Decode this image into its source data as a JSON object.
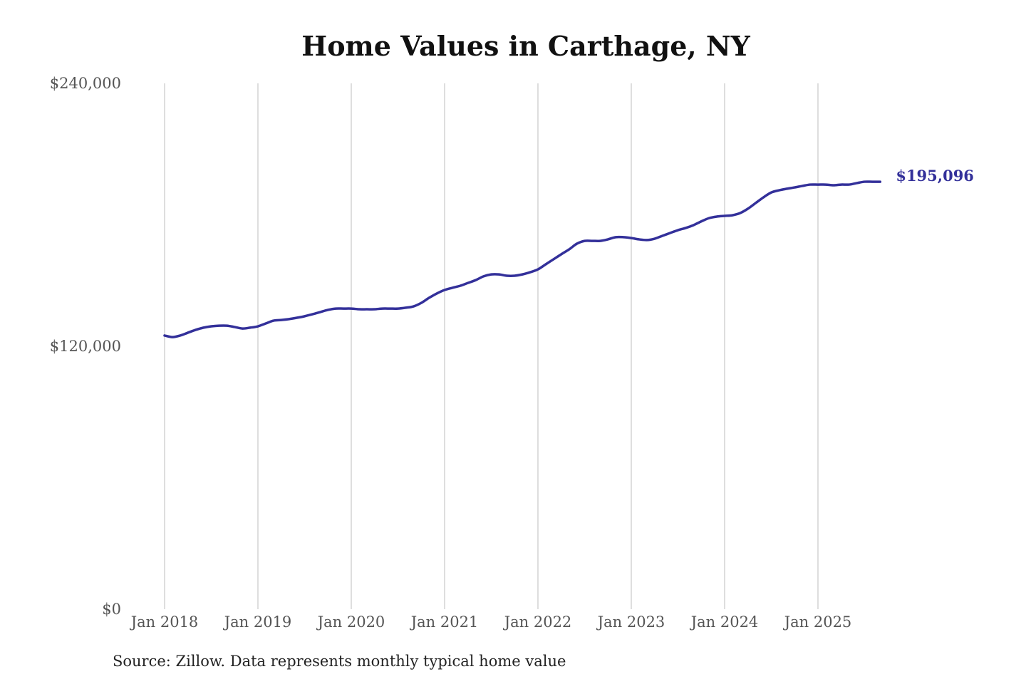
{
  "chart_data": {
    "type": "line",
    "title": "Home Values in Carthage, NY",
    "source": "Source: Zillow. Data represents monthly typical home value",
    "xlabel": "",
    "ylabel": "",
    "ylim": [
      0,
      240000
    ],
    "yticks": [
      0,
      120000,
      240000
    ],
    "ytick_labels": [
      "$0",
      "$120,000",
      "$240,000"
    ],
    "xticks": [
      "2018-01",
      "2019-01",
      "2020-01",
      "2021-01",
      "2022-01",
      "2023-01",
      "2024-01",
      "2025-01"
    ],
    "xtick_labels": [
      "Jan 2018",
      "Jan 2019",
      "Jan 2020",
      "Jan 2021",
      "Jan 2022",
      "Jan 2023",
      "Jan 2024",
      "Jan 2025"
    ],
    "grid": "vertical",
    "line_color": "#33309a",
    "end_label": "$195,096",
    "start": "2018-01",
    "frequency": "monthly",
    "values": [
      124900,
      124200,
      124900,
      126200,
      127500,
      128500,
      129100,
      129400,
      129400,
      128800,
      128100,
      128500,
      129100,
      130400,
      131700,
      132000,
      132400,
      133000,
      133700,
      134600,
      135600,
      136600,
      137200,
      137200,
      137200,
      136900,
      136900,
      136900,
      137200,
      137200,
      137200,
      137600,
      138200,
      139800,
      142100,
      144100,
      145700,
      146700,
      147600,
      148900,
      150200,
      151900,
      152800,
      152800,
      152200,
      152200,
      152800,
      153800,
      155100,
      157400,
      159700,
      162000,
      164200,
      166800,
      168100,
      168100,
      168100,
      168800,
      169800,
      169800,
      169400,
      168800,
      168500,
      169100,
      170400,
      171700,
      173000,
      174000,
      175300,
      177000,
      178500,
      179200,
      179500,
      179800,
      180800,
      182800,
      185400,
      188000,
      190200,
      191200,
      191900,
      192500,
      193200,
      193800,
      193800,
      193800,
      193500,
      193800,
      193800,
      194500,
      195100,
      195096,
      195096
    ]
  }
}
